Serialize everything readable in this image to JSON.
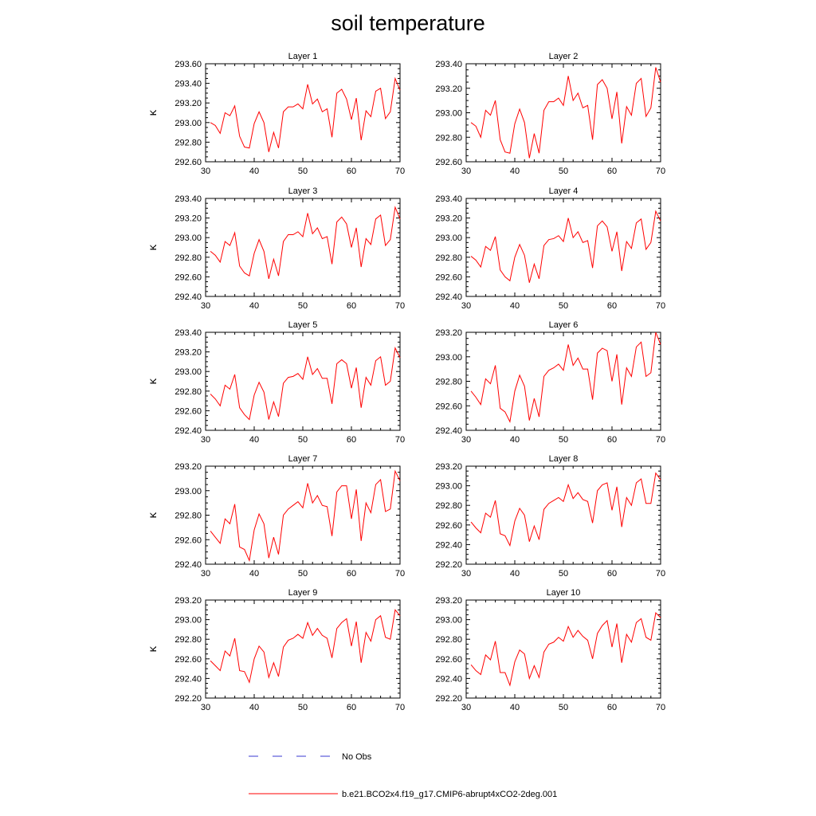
{
  "title": "soil temperature",
  "legend": {
    "entries": [
      {
        "label": "No Obs",
        "color": "#3a3ad0",
        "style": "dashed"
      },
      {
        "label": "b.e21.BCO2x4.f19_g17.CMIP6-abrupt4xCO2-2deg.001",
        "color": "#ff0000",
        "style": "solid"
      }
    ]
  },
  "chart_data": [
    {
      "type": "line",
      "title": "Layer 1",
      "xlabel": "",
      "ylabel": "K",
      "xlim": [
        30,
        70
      ],
      "ylim": [
        292.6,
        293.6
      ],
      "xticks": [
        30,
        40,
        50,
        60,
        70
      ],
      "yticks": [
        292.6,
        292.8,
        293.0,
        293.2,
        293.4,
        293.6
      ],
      "ytick_labels": [
        "292.60",
        "292.80",
        "293.00",
        "293.20",
        "293.40",
        "293.60"
      ],
      "x_start": 31,
      "series": [
        {
          "name": "b.e21.BCO2x4.f19_g17.CMIP6-abrupt4xCO2-2deg.001",
          "color": "#ff0000",
          "values": [
            293.0,
            292.97,
            292.89,
            293.1,
            293.07,
            293.17,
            292.86,
            292.75,
            292.74,
            292.99,
            293.11,
            293.0,
            292.7,
            292.9,
            292.74,
            293.11,
            293.16,
            293.16,
            293.19,
            293.14,
            293.39,
            293.19,
            293.24,
            293.11,
            293.14,
            292.85,
            293.3,
            293.34,
            293.24,
            293.03,
            293.25,
            292.82,
            293.12,
            293.06,
            293.32,
            293.35,
            293.04,
            293.11,
            293.45,
            293.33
          ]
        }
      ]
    },
    {
      "type": "line",
      "title": "Layer 2",
      "xlabel": "",
      "ylabel": "K",
      "xlim": [
        30,
        70
      ],
      "ylim": [
        292.6,
        293.4
      ],
      "xticks": [
        30,
        40,
        50,
        60,
        70
      ],
      "yticks": [
        292.6,
        292.8,
        293.0,
        293.2,
        293.4
      ],
      "ytick_labels": [
        "292.60",
        "292.80",
        "293.00",
        "293.20",
        "293.40"
      ],
      "x_start": 31,
      "series": [
        {
          "name": "b.e21.BCO2x4.f19_g17.CMIP6-abrupt4xCO2-2deg.001",
          "color": "#ff0000",
          "values": [
            292.92,
            292.89,
            292.8,
            293.02,
            292.98,
            293.1,
            292.78,
            292.68,
            292.67,
            292.91,
            293.03,
            292.92,
            292.63,
            292.83,
            292.67,
            293.02,
            293.09,
            293.09,
            293.12,
            293.06,
            293.3,
            293.1,
            293.16,
            293.04,
            293.06,
            292.78,
            293.23,
            293.27,
            293.2,
            292.95,
            293.17,
            292.75,
            293.05,
            292.98,
            293.24,
            293.28,
            292.97,
            293.04,
            293.37,
            293.25
          ]
        }
      ]
    },
    {
      "type": "line",
      "title": "Layer 3",
      "xlabel": "",
      "ylabel": "K",
      "xlim": [
        30,
        70
      ],
      "ylim": [
        292.4,
        293.4
      ],
      "xticks": [
        30,
        40,
        50,
        60,
        70
      ],
      "yticks": [
        292.4,
        292.6,
        292.8,
        293.0,
        293.2,
        293.4
      ],
      "ytick_labels": [
        "292.40",
        "292.60",
        "292.80",
        "293.00",
        "293.20",
        "293.40"
      ],
      "x_start": 31,
      "series": [
        {
          "name": "b.e21.BCO2x4.f19_g17.CMIP6-abrupt4xCO2-2deg.001",
          "color": "#ff0000",
          "values": [
            292.86,
            292.82,
            292.75,
            292.96,
            292.92,
            293.05,
            292.71,
            292.64,
            292.61,
            292.84,
            292.98,
            292.86,
            292.58,
            292.78,
            292.61,
            292.96,
            293.03,
            293.03,
            293.06,
            293.01,
            293.25,
            293.04,
            293.1,
            292.99,
            293.01,
            292.73,
            293.16,
            293.21,
            293.14,
            292.9,
            293.1,
            292.7,
            292.99,
            292.93,
            293.19,
            293.23,
            292.92,
            292.98,
            293.31,
            293.19
          ]
        }
      ]
    },
    {
      "type": "line",
      "title": "Layer 4",
      "xlabel": "",
      "ylabel": "K",
      "xlim": [
        30,
        70
      ],
      "ylim": [
        292.4,
        293.4
      ],
      "xticks": [
        30,
        40,
        50,
        60,
        70
      ],
      "yticks": [
        292.4,
        292.6,
        292.8,
        293.0,
        293.2,
        293.4
      ],
      "ytick_labels": [
        "292.40",
        "292.60",
        "292.80",
        "293.00",
        "293.20",
        "293.40"
      ],
      "x_start": 31,
      "series": [
        {
          "name": "b.e21.BCO2x4.f19_g17.CMIP6-abrupt4xCO2-2deg.001",
          "color": "#ff0000",
          "values": [
            292.81,
            292.77,
            292.7,
            292.91,
            292.87,
            293.01,
            292.67,
            292.6,
            292.56,
            292.8,
            292.93,
            292.82,
            292.54,
            292.73,
            292.58,
            292.92,
            292.98,
            292.99,
            293.02,
            292.96,
            293.2,
            293.0,
            293.06,
            292.95,
            292.97,
            292.69,
            293.12,
            293.17,
            293.11,
            292.86,
            293.06,
            292.66,
            292.96,
            292.89,
            293.15,
            293.19,
            292.88,
            292.95,
            293.27,
            293.17
          ]
        }
      ]
    },
    {
      "type": "line",
      "title": "Layer 5",
      "xlabel": "",
      "ylabel": "K",
      "xlim": [
        30,
        70
      ],
      "ylim": [
        292.4,
        293.4
      ],
      "xticks": [
        30,
        40,
        50,
        60,
        70
      ],
      "yticks": [
        292.4,
        292.6,
        292.8,
        293.0,
        293.2,
        293.4
      ],
      "ytick_labels": [
        "292.40",
        "292.60",
        "292.80",
        "293.00",
        "293.20",
        "293.40"
      ],
      "x_start": 31,
      "series": [
        {
          "name": "b.e21.BCO2x4.f19_g17.CMIP6-abrupt4xCO2-2deg.001",
          "color": "#ff0000",
          "values": [
            292.77,
            292.72,
            292.65,
            292.86,
            292.82,
            292.97,
            292.63,
            292.56,
            292.51,
            292.76,
            292.89,
            292.79,
            292.51,
            292.69,
            292.54,
            292.88,
            292.94,
            292.95,
            292.98,
            292.92,
            293.15,
            292.97,
            293.03,
            292.93,
            292.93,
            292.67,
            293.08,
            293.12,
            293.08,
            292.83,
            293.04,
            292.63,
            292.94,
            292.86,
            293.11,
            293.15,
            292.86,
            292.9,
            293.24,
            293.14
          ]
        }
      ]
    },
    {
      "type": "line",
      "title": "Layer 6",
      "xlabel": "",
      "ylabel": "K",
      "xlim": [
        30,
        70
      ],
      "ylim": [
        292.4,
        293.2
      ],
      "xticks": [
        30,
        40,
        50,
        60,
        70
      ],
      "yticks": [
        292.4,
        292.6,
        292.8,
        293.0,
        293.2
      ],
      "ytick_labels": [
        "292.40",
        "292.60",
        "292.80",
        "293.00",
        "293.20"
      ],
      "x_start": 31,
      "series": [
        {
          "name": "b.e21.BCO2x4.f19_g17.CMIP6-abrupt4xCO2-2deg.001",
          "color": "#ff0000",
          "values": [
            292.72,
            292.67,
            292.61,
            292.82,
            292.78,
            292.93,
            292.58,
            292.55,
            292.47,
            292.72,
            292.85,
            292.76,
            292.48,
            292.66,
            292.51,
            292.84,
            292.89,
            292.91,
            292.94,
            292.89,
            293.1,
            292.93,
            292.99,
            292.9,
            292.9,
            292.65,
            293.03,
            293.07,
            293.05,
            292.8,
            293.02,
            292.61,
            292.91,
            292.84,
            293.08,
            293.12,
            292.84,
            292.87,
            293.2,
            293.1
          ]
        }
      ]
    },
    {
      "type": "line",
      "title": "Layer 7",
      "xlabel": "",
      "ylabel": "K",
      "xlim": [
        30,
        70
      ],
      "ylim": [
        292.4,
        293.2
      ],
      "xticks": [
        30,
        40,
        50,
        60,
        70
      ],
      "yticks": [
        292.4,
        292.6,
        292.8,
        293.0,
        293.2
      ],
      "ytick_labels": [
        "292.40",
        "292.60",
        "292.80",
        "293.00",
        "293.20"
      ],
      "x_start": 31,
      "series": [
        {
          "name": "b.e21.BCO2x4.f19_g17.CMIP6-abrupt4xCO2-2deg.001",
          "color": "#ff0000",
          "values": [
            292.67,
            292.62,
            292.57,
            292.77,
            292.73,
            292.89,
            292.54,
            292.52,
            292.43,
            292.68,
            292.81,
            292.73,
            292.45,
            292.62,
            292.48,
            292.8,
            292.85,
            292.88,
            292.91,
            292.86,
            293.06,
            292.9,
            292.96,
            292.88,
            292.87,
            292.63,
            292.99,
            293.04,
            293.04,
            292.77,
            293.01,
            292.59,
            292.9,
            292.82,
            293.05,
            293.09,
            292.83,
            292.85,
            293.16,
            293.08
          ]
        }
      ]
    },
    {
      "type": "line",
      "title": "Layer 8",
      "xlabel": "",
      "ylabel": "K",
      "xlim": [
        30,
        70
      ],
      "ylim": [
        292.2,
        293.2
      ],
      "xticks": [
        30,
        40,
        50,
        60,
        70
      ],
      "yticks": [
        292.2,
        292.4,
        292.6,
        292.8,
        293.0,
        293.2
      ],
      "ytick_labels": [
        "292.20",
        "292.40",
        "292.60",
        "292.80",
        "293.00",
        "293.20"
      ],
      "x_start": 31,
      "series": [
        {
          "name": "b.e21.BCO2x4.f19_g17.CMIP6-abrupt4xCO2-2deg.001",
          "color": "#ff0000",
          "values": [
            292.63,
            292.57,
            292.52,
            292.72,
            292.68,
            292.85,
            292.51,
            292.49,
            292.39,
            292.64,
            292.77,
            292.7,
            292.43,
            292.59,
            292.45,
            292.76,
            292.82,
            292.85,
            292.88,
            292.84,
            293.01,
            292.87,
            292.93,
            292.86,
            292.84,
            292.62,
            292.95,
            293.01,
            293.03,
            292.75,
            292.99,
            292.58,
            292.88,
            292.8,
            293.03,
            293.07,
            292.82,
            292.82,
            293.13,
            293.06
          ]
        }
      ]
    },
    {
      "type": "line",
      "title": "Layer 9",
      "xlabel": "",
      "ylabel": "K",
      "xlim": [
        30,
        70
      ],
      "ylim": [
        292.2,
        293.2
      ],
      "xticks": [
        30,
        40,
        50,
        60,
        70
      ],
      "yticks": [
        292.2,
        292.4,
        292.6,
        292.8,
        293.0,
        293.2
      ],
      "ytick_labels": [
        "292.20",
        "292.40",
        "292.60",
        "292.80",
        "293.00",
        "293.20"
      ],
      "x_start": 31,
      "series": [
        {
          "name": "b.e21.BCO2x4.f19_g17.CMIP6-abrupt4xCO2-2deg.001",
          "color": "#ff0000",
          "values": [
            292.58,
            292.53,
            292.48,
            292.68,
            292.63,
            292.81,
            292.48,
            292.47,
            292.36,
            292.6,
            292.73,
            292.67,
            292.41,
            292.56,
            292.42,
            292.72,
            292.79,
            292.81,
            292.85,
            292.81,
            292.97,
            292.84,
            292.91,
            292.84,
            292.81,
            292.61,
            292.91,
            292.97,
            293.01,
            292.73,
            292.98,
            292.56,
            292.87,
            292.78,
            293.0,
            293.04,
            292.82,
            292.8,
            293.1,
            293.04
          ]
        }
      ]
    },
    {
      "type": "line",
      "title": "Layer 10",
      "xlabel": "",
      "ylabel": "K",
      "xlim": [
        30,
        70
      ],
      "ylim": [
        292.2,
        293.2
      ],
      "xticks": [
        30,
        40,
        50,
        60,
        70
      ],
      "yticks": [
        292.2,
        292.4,
        292.6,
        292.8,
        293.0,
        293.2
      ],
      "ytick_labels": [
        "292.20",
        "292.40",
        "292.60",
        "292.80",
        "293.00",
        "293.20"
      ],
      "x_start": 31,
      "series": [
        {
          "name": "b.e21.BCO2x4.f19_g17.CMIP6-abrupt4xCO2-2deg.001",
          "color": "#ff0000",
          "values": [
            292.54,
            292.48,
            292.44,
            292.64,
            292.59,
            292.78,
            292.46,
            292.46,
            292.33,
            292.57,
            292.69,
            292.65,
            292.4,
            292.53,
            292.41,
            292.67,
            292.75,
            292.77,
            292.82,
            292.78,
            292.93,
            292.82,
            292.89,
            292.83,
            292.79,
            292.6,
            292.86,
            292.94,
            292.99,
            292.72,
            292.96,
            292.56,
            292.85,
            292.77,
            292.97,
            293.01,
            292.82,
            292.79,
            293.07,
            293.02
          ]
        }
      ]
    }
  ]
}
